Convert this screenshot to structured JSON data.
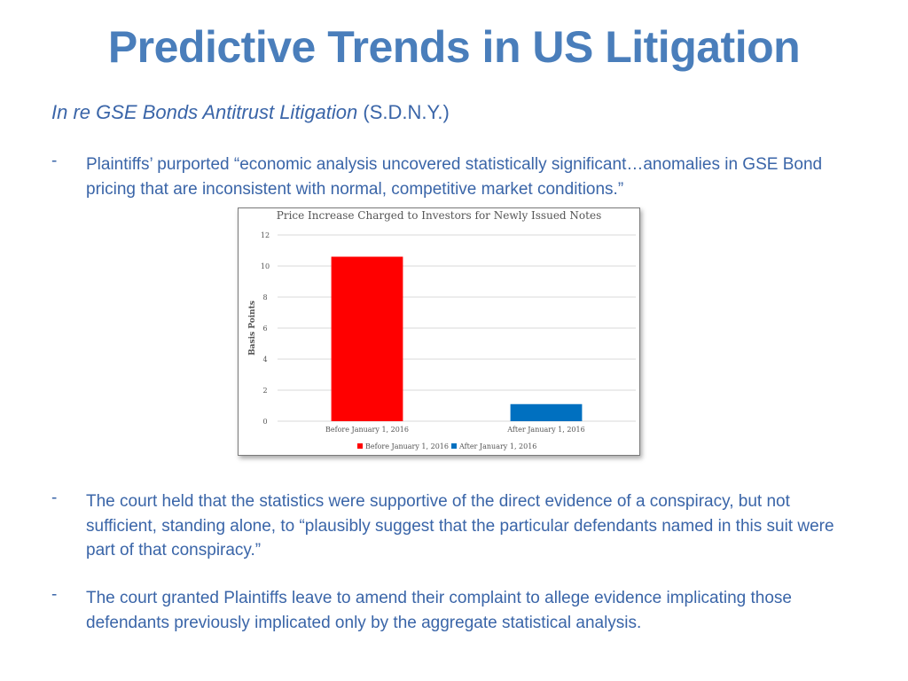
{
  "slide": {
    "title": "Predictive Trends in US Litigation",
    "case_name": "In re GSE Bonds Antitrust Litigation",
    "case_court": " (S.D.N.Y.)",
    "bullet_marker": "-",
    "bullets": [
      "Plaintiffs’ purported “economic analysis uncovered statistically significant…anomalies in GSE Bond pricing that are inconsistent with normal, competitive market conditions.”",
      "The court held that the statistics were supportive of the direct evidence of a conspiracy, but not sufficient, standing alone, to “plausibly suggest that the particular defendants named in this suit were part of that conspiracy.”",
      "The court granted Plaintiffs leave to amend their complaint to allege evidence implicating those defendants previously implicated only by the aggregate statistical analysis."
    ]
  },
  "chart_data": {
    "type": "bar",
    "title": "Price Increase Charged to Investors for Newly Issued Notes",
    "xlabel": "",
    "ylabel": "Basis Points",
    "ylim": [
      0,
      12
    ],
    "yticks": [
      0,
      2,
      4,
      6,
      8,
      10,
      12
    ],
    "categories": [
      "Before January 1, 2016",
      "After January 1, 2016"
    ],
    "values": [
      10.6,
      1.1
    ],
    "colors": [
      "#ff0000",
      "#0070c0"
    ],
    "grid": true,
    "legend_position": "bottom",
    "legend": [
      "Before January 1, 2016",
      "After January 1, 2016"
    ]
  }
}
